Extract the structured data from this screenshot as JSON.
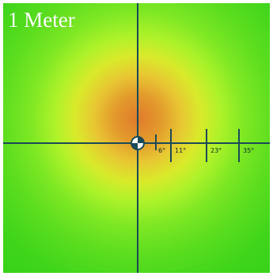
{
  "title": "1 Meter",
  "scale": {
    "ticks": [
      {
        "label": "6°"
      },
      {
        "label": "11°"
      },
      {
        "label": "23°"
      },
      {
        "label": "35°"
      }
    ]
  },
  "colors": {
    "hotspot": "#e07a2c",
    "mid": "#e8c633",
    "field": "#2ece16",
    "crosshair": "#1b4a57"
  }
}
